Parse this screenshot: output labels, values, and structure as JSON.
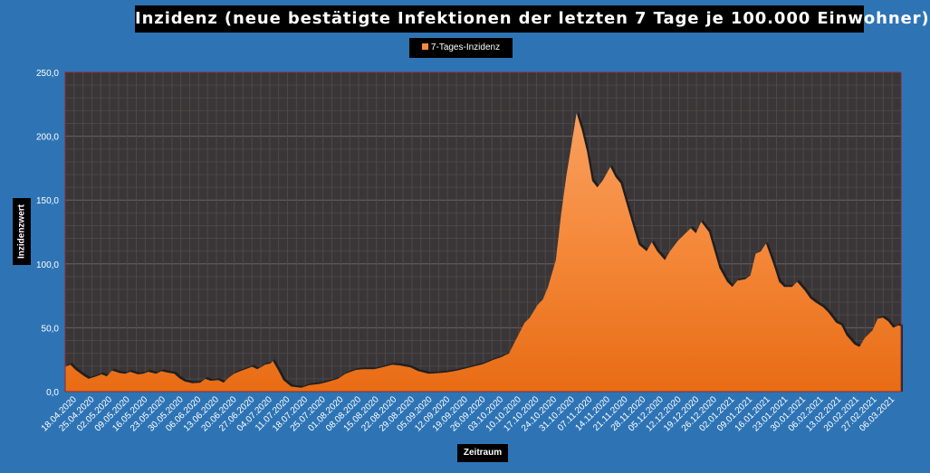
{
  "chart_data": {
    "type": "area",
    "title": "Inzidenz (neue bestätigte Infektionen der letzten 7 Tage je 100.000 Einwohner)",
    "xlabel": "Zeitraum",
    "ylabel": "Inzidenzwert",
    "ylim": [
      0,
      250
    ],
    "y_ticks": [
      "0,0",
      "50,0",
      "100,0",
      "150,0",
      "200,0",
      "250,0"
    ],
    "grid": true,
    "legend_placement": "top-center",
    "x_start": "18.04.2020",
    "x_end": "06.03.2021",
    "x_tick_labels": [
      "18.04.2020",
      "25.04.2020",
      "02.05.2020",
      "09.05.2020",
      "16.05.2020",
      "23.05.2020",
      "30.05.2020",
      "06.06.2020",
      "13.06.2020",
      "20.06.2020",
      "27.06.2020",
      "04.07.2020",
      "11.07.2020",
      "18.07.2020",
      "25.07.2020",
      "01.08.2020",
      "08.08.2020",
      "15.08.2020",
      "22.08.2020",
      "29.08.2020",
      "05.09.2020",
      "12.09.2020",
      "19.09.2020",
      "26.09.2020",
      "03.10.2020",
      "10.10.2020",
      "17.10.2020",
      "24.10.2020",
      "31.10.2020",
      "07.11.2020",
      "14.11.2020",
      "21.11.2020",
      "28.11.2020",
      "05.12.2020",
      "12.12.2020",
      "19.12.2020",
      "26.12.2020",
      "02.01.2021",
      "09.01.2021",
      "16.01.2021",
      "23.01.2021",
      "30.01.2021",
      "06.02.2021",
      "13.02.2021",
      "20.02.2021",
      "27.02.2021",
      "06.03.2021"
    ],
    "series": [
      {
        "name": "7-Tages-Inzidenz",
        "color": "#f07a28",
        "points": [
          [
            "18.04.2020",
            19.5
          ],
          [
            "20.04.2020",
            21
          ],
          [
            "22.04.2020",
            17
          ],
          [
            "25.04.2020",
            12.5
          ],
          [
            "27.04.2020",
            10
          ],
          [
            "30.04.2020",
            12
          ],
          [
            "02.05.2020",
            13.5
          ],
          [
            "04.05.2020",
            12
          ],
          [
            "06.05.2020",
            16.5
          ],
          [
            "09.05.2020",
            14.5
          ],
          [
            "11.05.2020",
            14
          ],
          [
            "13.05.2020",
            15.5
          ],
          [
            "16.05.2020",
            13.5
          ],
          [
            "18.05.2020",
            14
          ],
          [
            "20.05.2020",
            15.5
          ],
          [
            "23.05.2020",
            14
          ],
          [
            "25.05.2020",
            16
          ],
          [
            "27.05.2020",
            15
          ],
          [
            "30.05.2020",
            14
          ],
          [
            "01.06.2020",
            10.5
          ],
          [
            "03.06.2020",
            8
          ],
          [
            "06.06.2020",
            6.5
          ],
          [
            "09.06.2020",
            7
          ],
          [
            "11.06.2020",
            10
          ],
          [
            "13.06.2020",
            8.5
          ],
          [
            "16.06.2020",
            9
          ],
          [
            "18.06.2020",
            7
          ],
          [
            "20.06.2020",
            11
          ],
          [
            "22.06.2020",
            14
          ],
          [
            "25.06.2020",
            16.5
          ],
          [
            "27.06.2020",
            18
          ],
          [
            "29.06.2020",
            19.5
          ],
          [
            "01.07.2020",
            17.5
          ],
          [
            "04.07.2020",
            21
          ],
          [
            "06.07.2020",
            22
          ],
          [
            "07.07.2020",
            24
          ],
          [
            "09.07.2020",
            17
          ],
          [
            "11.07.2020",
            9
          ],
          [
            "14.07.2020",
            4
          ],
          [
            "18.07.2020",
            3
          ],
          [
            "21.07.2020",
            5
          ],
          [
            "25.07.2020",
            6
          ],
          [
            "28.07.2020",
            7.5
          ],
          [
            "01.08.2020",
            10
          ],
          [
            "04.08.2020",
            14
          ],
          [
            "08.08.2020",
            17
          ],
          [
            "11.08.2020",
            17.5
          ],
          [
            "15.08.2020",
            17.5
          ],
          [
            "18.08.2020",
            19
          ],
          [
            "22.08.2020",
            21
          ],
          [
            "25.08.2020",
            20.5
          ],
          [
            "29.08.2020",
            19
          ],
          [
            "01.09.2020",
            16
          ],
          [
            "05.09.2020",
            14
          ],
          [
            "09.09.2020",
            14.5
          ],
          [
            "12.09.2020",
            15
          ],
          [
            "16.09.2020",
            16.5
          ],
          [
            "19.09.2020",
            18
          ],
          [
            "23.09.2020",
            20
          ],
          [
            "26.09.2020",
            21.5
          ],
          [
            "30.09.2020",
            25
          ],
          [
            "03.10.2020",
            27
          ],
          [
            "06.10.2020",
            30
          ],
          [
            "08.10.2020",
            38
          ],
          [
            "10.10.2020",
            46
          ],
          [
            "12.10.2020",
            54
          ],
          [
            "14.10.2020",
            58
          ],
          [
            "17.10.2020",
            68
          ],
          [
            "19.10.2020",
            72
          ],
          [
            "21.10.2020",
            82
          ],
          [
            "24.10.2020",
            103
          ],
          [
            "26.10.2020",
            138
          ],
          [
            "28.10.2020",
            168
          ],
          [
            "30.10.2020",
            193
          ],
          [
            "01.11.2020",
            218
          ],
          [
            "03.11.2020",
            205
          ],
          [
            "05.11.2020",
            188
          ],
          [
            "07.11.2020",
            165
          ],
          [
            "09.11.2020",
            160
          ],
          [
            "11.11.2020",
            165
          ],
          [
            "14.11.2020",
            176
          ],
          [
            "16.11.2020",
            168
          ],
          [
            "18.11.2020",
            163
          ],
          [
            "21.11.2020",
            142
          ],
          [
            "23.11.2020",
            128
          ],
          [
            "25.11.2020",
            115
          ],
          [
            "28.11.2020",
            110
          ],
          [
            "30.11.2020",
            117
          ],
          [
            "02.12.2020",
            110
          ],
          [
            "05.12.2020",
            103
          ],
          [
            "07.12.2020",
            110
          ],
          [
            "10.12.2020",
            118
          ],
          [
            "12.12.2020",
            122
          ],
          [
            "15.12.2020",
            128
          ],
          [
            "17.12.2020",
            124
          ],
          [
            "19.12.2020",
            133
          ],
          [
            "22.12.2020",
            125
          ],
          [
            "24.12.2020",
            111
          ],
          [
            "26.12.2020",
            97
          ],
          [
            "29.12.2020",
            86
          ],
          [
            "31.12.2020",
            82
          ],
          [
            "02.01.2021",
            87
          ],
          [
            "05.01.2021",
            88
          ],
          [
            "07.01.2021",
            91
          ],
          [
            "09.01.2021",
            108
          ],
          [
            "11.01.2021",
            110
          ],
          [
            "13.01.2021",
            116
          ],
          [
            "16.01.2021",
            99
          ],
          [
            "18.01.2021",
            86
          ],
          [
            "20.01.2021",
            82
          ],
          [
            "23.01.2021",
            82
          ],
          [
            "25.01.2021",
            86
          ],
          [
            "28.01.2021",
            79
          ],
          [
            "30.01.2021",
            73
          ],
          [
            "01.02.2021",
            70
          ],
          [
            "04.02.2021",
            66
          ],
          [
            "06.02.2021",
            62
          ],
          [
            "09.02.2021",
            54
          ],
          [
            "11.02.2021",
            52
          ],
          [
            "13.02.2021",
            44
          ],
          [
            "16.02.2021",
            37
          ],
          [
            "18.02.2021",
            35
          ],
          [
            "20.02.2021",
            42
          ],
          [
            "23.02.2021",
            48
          ],
          [
            "25.02.2021",
            57
          ],
          [
            "27.02.2021",
            58
          ],
          [
            "01.03.2021",
            55
          ],
          [
            "03.03.2021",
            50
          ],
          [
            "05.03.2021",
            52
          ],
          [
            "06.03.2021",
            51
          ]
        ]
      }
    ]
  }
}
